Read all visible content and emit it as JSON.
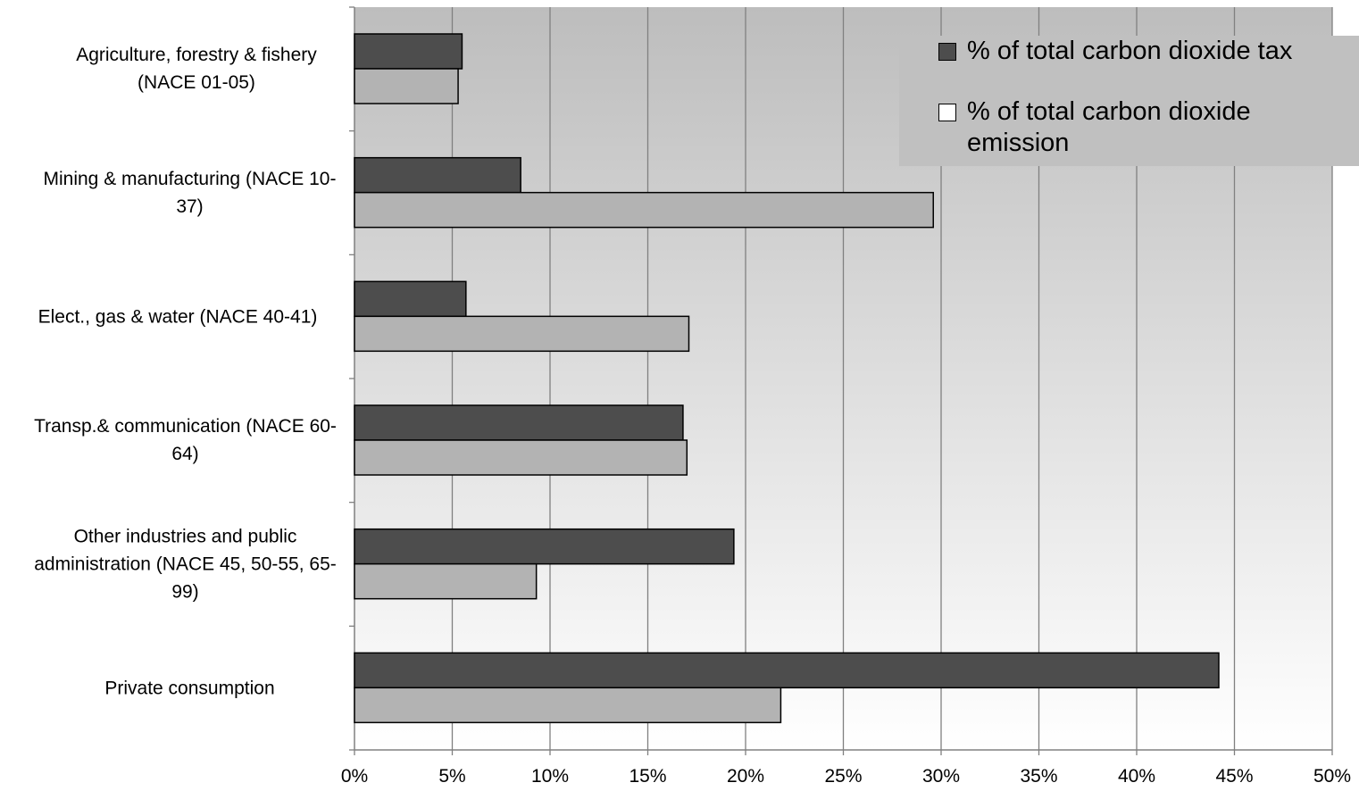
{
  "chart_data": {
    "type": "bar",
    "orientation": "horizontal",
    "categories": [
      "Agriculture, forestry & fishery (NACE 01-05)",
      "Mining & manufacturing (NACE 10-37)",
      "Elect., gas & water (NACE 40-41)",
      "Transp.& communication (NACE 60-64)",
      "Other industries and public administration (NACE 45, 50-55, 65-99)",
      "Private consumption"
    ],
    "series": [
      {
        "name": "% of total carbon dioxide tax",
        "color": "#4d4d4d",
        "values": [
          5.5,
          8.5,
          5.7,
          16.8,
          19.4,
          44.2
        ]
      },
      {
        "name": "% of total carbon dioxide emission",
        "color": "#b3b3b3",
        "values": [
          5.3,
          29.6,
          17.1,
          17.0,
          9.3,
          21.8
        ]
      }
    ],
    "xlim": [
      0,
      50
    ],
    "xticks": [
      {
        "value": 0,
        "label": "0%"
      },
      {
        "value": 5,
        "label": "5%"
      },
      {
        "value": 10,
        "label": "10%"
      },
      {
        "value": 15,
        "label": "15%"
      },
      {
        "value": 20,
        "label": "20%"
      },
      {
        "value": 25,
        "label": "25%"
      },
      {
        "value": 30,
        "label": "30%"
      },
      {
        "value": 35,
        "label": "35%"
      },
      {
        "value": 40,
        "label": "40%"
      },
      {
        "value": 45,
        "label": "45%"
      },
      {
        "value": 50,
        "label": "50%"
      }
    ],
    "grid": true,
    "legend": "top-right"
  }
}
